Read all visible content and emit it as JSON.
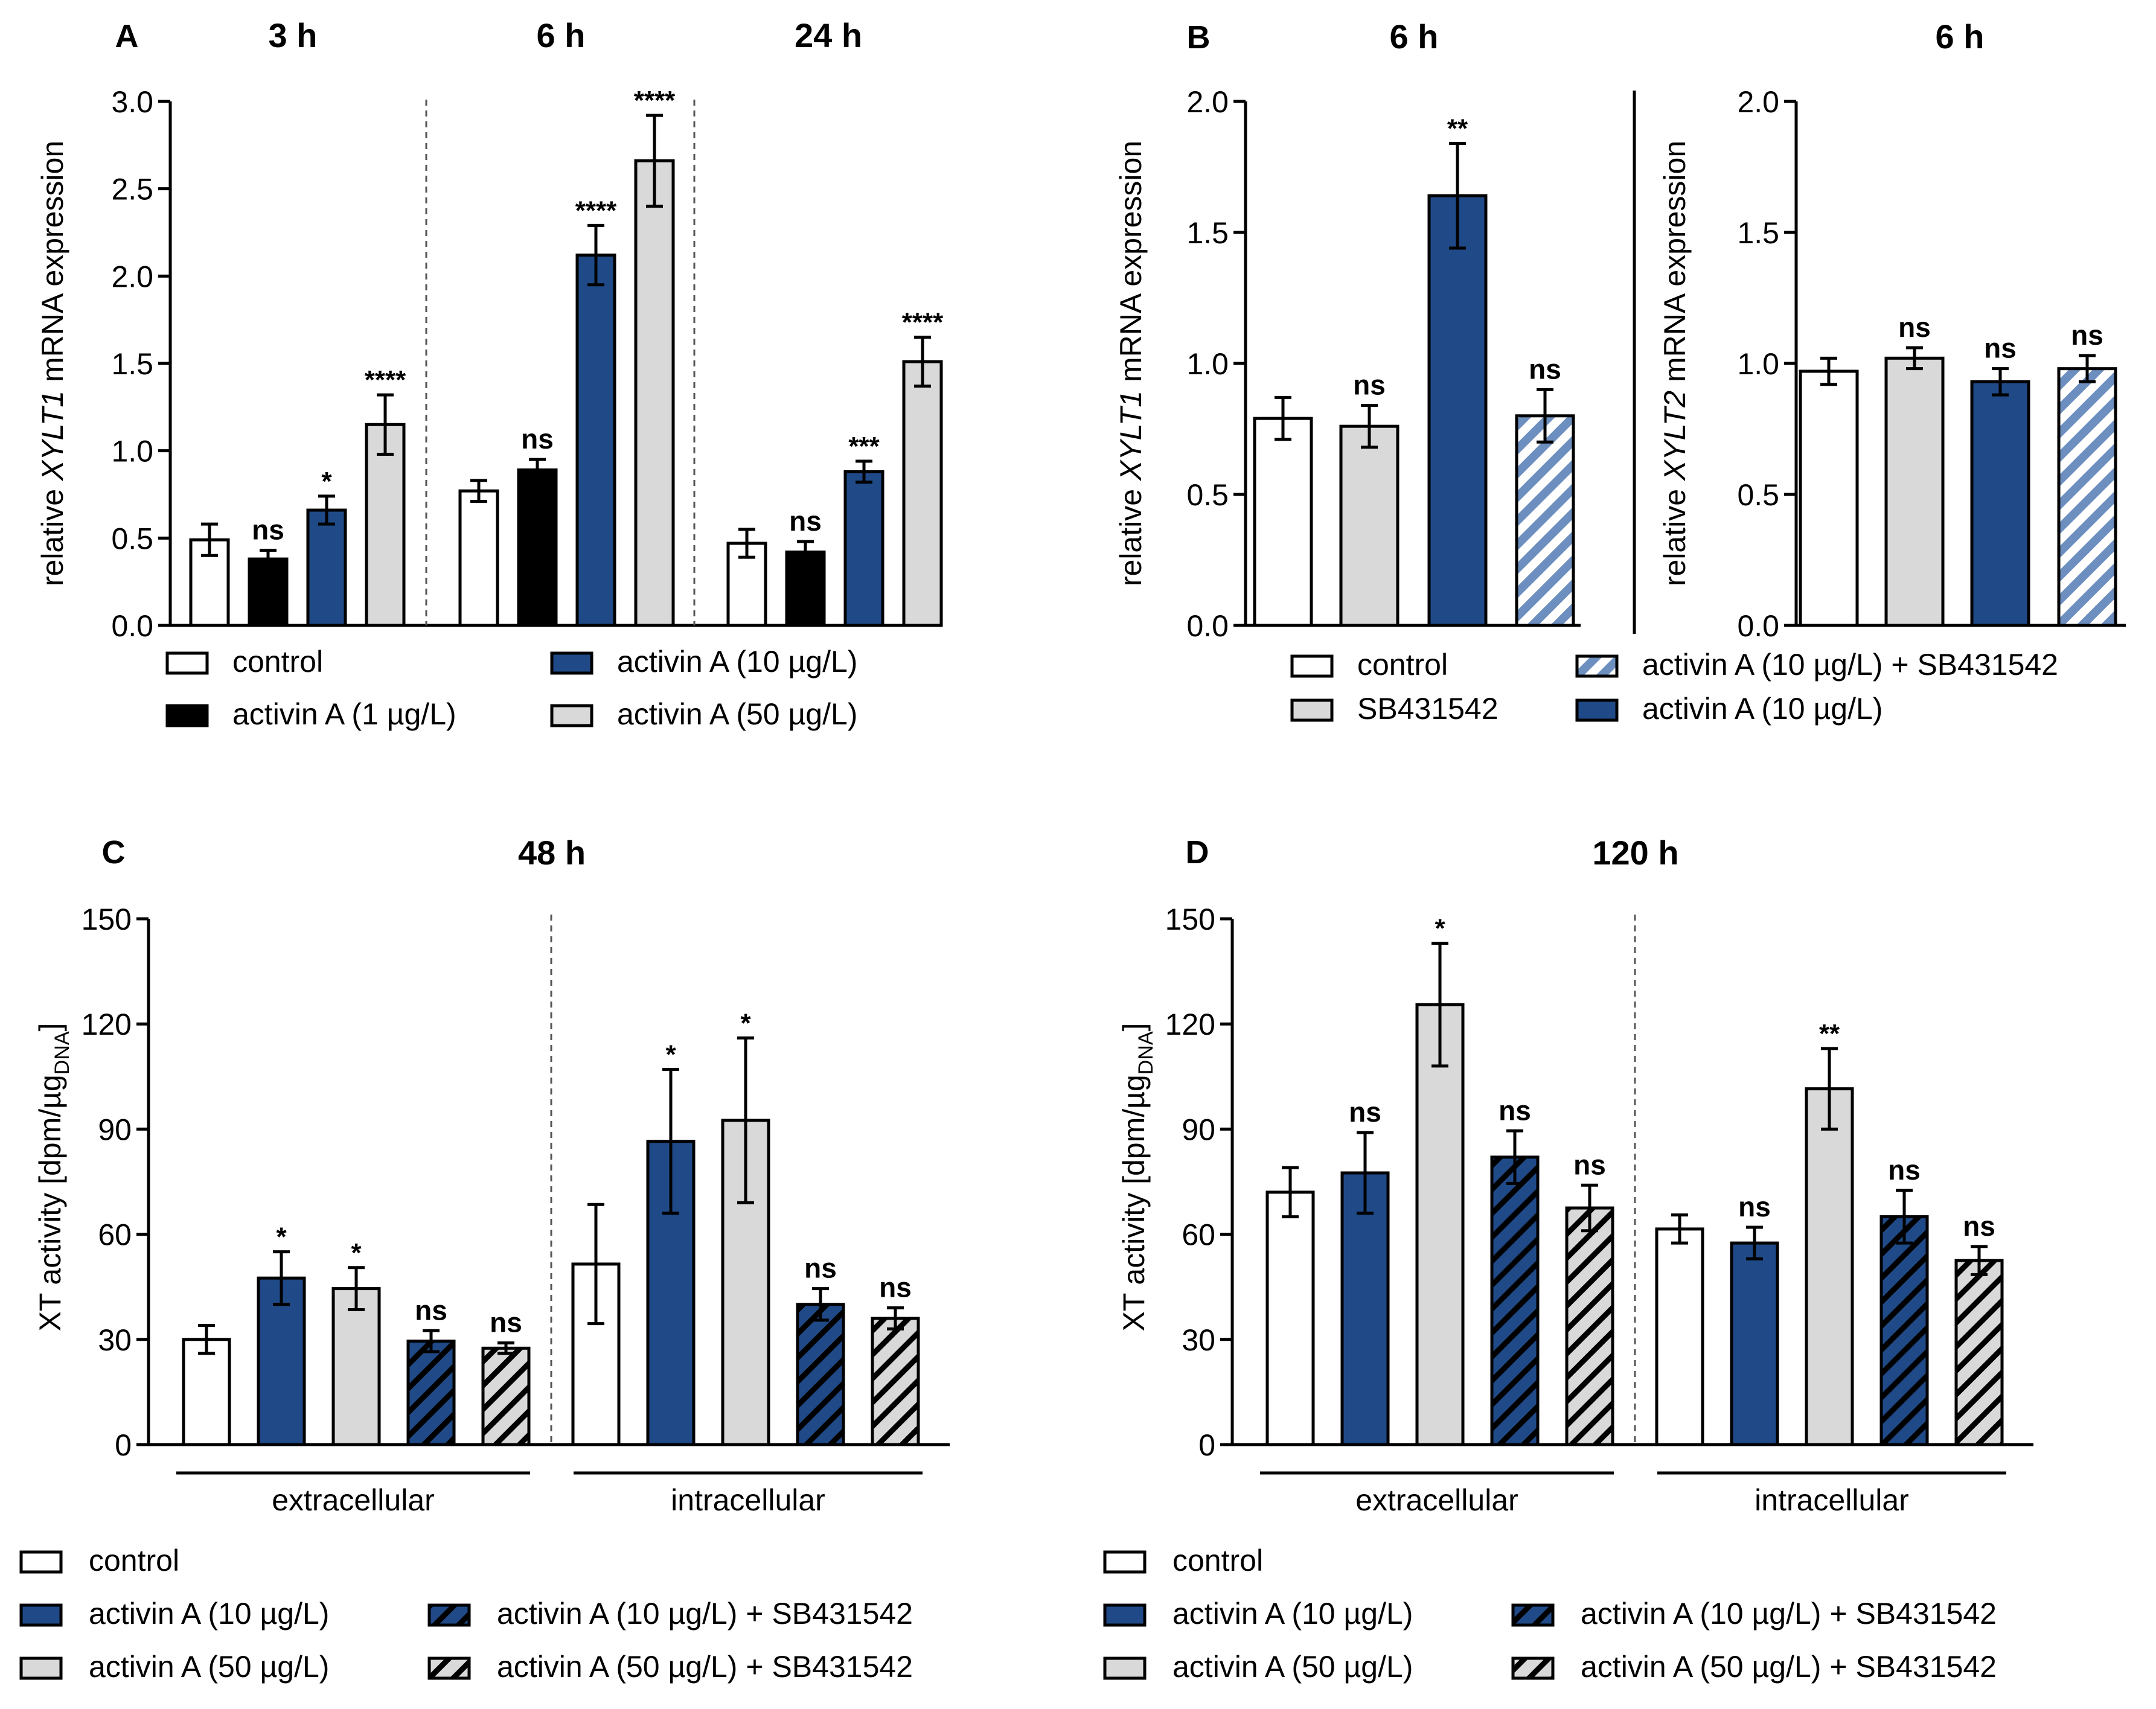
{
  "colors": {
    "white": "#ffffff",
    "black": "#000000",
    "navy": "#1f4a87",
    "gray": "#d9d9d9",
    "hatch_light_bg": "#a9bfdd",
    "dashed": "#555555"
  },
  "legends": {
    "A": [
      {
        "label": "control",
        "style": "white"
      },
      {
        "label": "activin A (1 µg/L)",
        "style": "black"
      },
      {
        "label": "activin A (10 µg/L)",
        "style": "navy"
      },
      {
        "label": "activin A (50 µg/L)",
        "style": "gray"
      }
    ],
    "B": [
      {
        "label": "control",
        "style": "white"
      },
      {
        "label": "SB431542",
        "style": "gray"
      },
      {
        "label": "activin A (10 µg/L) + SB431542",
        "style": "navyhatch_light"
      },
      {
        "label": "activin A (10 µg/L)",
        "style": "navy"
      }
    ],
    "CD": [
      {
        "label": "control",
        "style": "white"
      },
      {
        "label": "activin A (10 µg/L)",
        "style": "navy"
      },
      {
        "label": "activin A (50 µg/L)",
        "style": "gray"
      },
      {
        "label": "activin A (10 µg/L) + SB431542",
        "style": "navyhatch"
      },
      {
        "label": "activin A (50 µg/L) + SB431542",
        "style": "grayhatch"
      }
    ]
  },
  "chart_data": [
    {
      "panel": "A",
      "type": "bar",
      "title_segments": [
        "3 h",
        "6 h",
        "24 h"
      ],
      "ylabel_pre": "relative ",
      "ylabel_italic": "XYLT1",
      "ylabel_post": " mRNA expression",
      "ylim": [
        0,
        3.0
      ],
      "yticks": [
        "0.0",
        "0.5",
        "1.0",
        "1.5",
        "2.0",
        "2.5",
        "3.0"
      ],
      "groups": [
        {
          "name": "3 h",
          "bars": [
            {
              "series": "control",
              "style": "white",
              "value": 0.49,
              "err": 0.09,
              "sig": ""
            },
            {
              "series": "activin A (1 µg/L)",
              "style": "black",
              "value": 0.38,
              "err": 0.05,
              "sig": "ns"
            },
            {
              "series": "activin A (10 µg/L)",
              "style": "navy",
              "value": 0.66,
              "err": 0.08,
              "sig": "*"
            },
            {
              "series": "activin A (50 µg/L)",
              "style": "gray",
              "value": 1.15,
              "err": 0.17,
              "sig": "****"
            }
          ]
        },
        {
          "name": "6 h",
          "bars": [
            {
              "series": "control",
              "style": "white",
              "value": 0.77,
              "err": 0.06,
              "sig": ""
            },
            {
              "series": "activin A (1 µg/L)",
              "style": "black",
              "value": 0.89,
              "err": 0.06,
              "sig": "ns"
            },
            {
              "series": "activin A (10 µg/L)",
              "style": "navy",
              "value": 2.12,
              "err": 0.17,
              "sig": "****"
            },
            {
              "series": "activin A (50 µg/L)",
              "style": "gray",
              "value": 2.66,
              "err": 0.26,
              "sig": "****"
            }
          ]
        },
        {
          "name": "24 h",
          "bars": [
            {
              "series": "control",
              "style": "white",
              "value": 0.47,
              "err": 0.08,
              "sig": ""
            },
            {
              "series": "activin A (1 µg/L)",
              "style": "black",
              "value": 0.42,
              "err": 0.06,
              "sig": "ns"
            },
            {
              "series": "activin A (10 µg/L)",
              "style": "navy",
              "value": 0.88,
              "err": 0.06,
              "sig": "***"
            },
            {
              "series": "activin A (50 µg/L)",
              "style": "gray",
              "value": 1.51,
              "err": 0.14,
              "sig": "****"
            }
          ]
        }
      ]
    },
    {
      "panel": "B",
      "type": "bar",
      "subpanel": 1,
      "title": "6 h",
      "ylabel_pre": "relative ",
      "ylabel_italic": "XYLT1",
      "ylabel_post": " mRNA expression",
      "ylim": [
        0,
        2.0
      ],
      "yticks": [
        "0.0",
        "0.5",
        "1.0",
        "1.5",
        "2.0"
      ],
      "bars": [
        {
          "series": "control",
          "style": "white",
          "value": 0.79,
          "err": 0.08,
          "sig": ""
        },
        {
          "series": "SB431542",
          "style": "gray",
          "value": 0.76,
          "err": 0.08,
          "sig": "ns"
        },
        {
          "series": "activin A (10 µg/L)",
          "style": "navy",
          "value": 1.64,
          "err": 0.2,
          "sig": "**"
        },
        {
          "series": "activin A (10 µg/L) + SB431542",
          "style": "navyhatch_light",
          "value": 0.8,
          "err": 0.1,
          "sig": "ns"
        }
      ]
    },
    {
      "panel": "B",
      "type": "bar",
      "subpanel": 2,
      "title": "6 h",
      "ylabel_pre": "relative ",
      "ylabel_italic": "XYLT2",
      "ylabel_post": " mRNA expression",
      "ylim": [
        0,
        2.0
      ],
      "yticks": [
        "0.0",
        "0.5",
        "1.0",
        "1.5",
        "2.0"
      ],
      "bars": [
        {
          "series": "control",
          "style": "white",
          "value": 0.97,
          "err": 0.05,
          "sig": ""
        },
        {
          "series": "SB431542",
          "style": "gray",
          "value": 1.02,
          "err": 0.04,
          "sig": "ns"
        },
        {
          "series": "activin A (10 µg/L)",
          "style": "navy",
          "value": 0.93,
          "err": 0.05,
          "sig": "ns"
        },
        {
          "series": "activin A (10 µg/L) + SB431542",
          "style": "navyhatch_light",
          "value": 0.98,
          "err": 0.05,
          "sig": "ns"
        }
      ]
    },
    {
      "panel": "C",
      "type": "bar",
      "title": "48 h",
      "ylabel_main": "XT activity [dpm/µg",
      "ylabel_sub": "DNA",
      "ylabel_end": "]",
      "ylim": [
        0,
        150
      ],
      "yticks": [
        "0",
        "30",
        "60",
        "90",
        "120",
        "150"
      ],
      "groups": [
        {
          "name": "extracellular",
          "bars": [
            {
              "series": "control",
              "style": "white",
              "value": 30,
              "err": 4,
              "sig": ""
            },
            {
              "series": "activin A (10 µg/L)",
              "style": "navy",
              "value": 47.5,
              "err": 7.5,
              "sig": "*"
            },
            {
              "series": "activin A (50 µg/L)",
              "style": "gray",
              "value": 44.5,
              "err": 6,
              "sig": "*"
            },
            {
              "series": "activin A (10 µg/L) + SB431542",
              "style": "navyhatch",
              "value": 29.5,
              "err": 3,
              "sig": "ns"
            },
            {
              "series": "activin A (50 µg/L) + SB431542",
              "style": "grayhatch",
              "value": 27.5,
              "err": 1.5,
              "sig": "ns"
            }
          ]
        },
        {
          "name": "intracellular",
          "bars": [
            {
              "series": "control",
              "style": "white",
              "value": 51.5,
              "err": 17,
              "sig": ""
            },
            {
              "series": "activin A (10 µg/L)",
              "style": "navy",
              "value": 86.5,
              "err": 20.5,
              "sig": "*"
            },
            {
              "series": "activin A (50 µg/L)",
              "style": "gray",
              "value": 92.5,
              "err": 23.5,
              "sig": "*"
            },
            {
              "series": "activin A (10 µg/L) + SB431542",
              "style": "navyhatch",
              "value": 40,
              "err": 4.5,
              "sig": "ns"
            },
            {
              "series": "activin A (50 µg/L) + SB431542",
              "style": "grayhatch",
              "value": 36,
              "err": 3,
              "sig": "ns"
            }
          ]
        }
      ]
    },
    {
      "panel": "D",
      "type": "bar",
      "title": "120 h",
      "ylabel_main": "XT activity [dpm/µg",
      "ylabel_sub": "DNA",
      "ylabel_end": "]",
      "ylim": [
        0,
        150
      ],
      "yticks": [
        "0",
        "30",
        "60",
        "90",
        "120",
        "150"
      ],
      "groups": [
        {
          "name": "extracellular",
          "bars": [
            {
              "series": "control",
              "style": "white",
              "value": 72,
              "err": 7,
              "sig": ""
            },
            {
              "series": "activin A (10 µg/L)",
              "style": "navy",
              "value": 77.5,
              "err": 11.5,
              "sig": "ns"
            },
            {
              "series": "activin A (50 µg/L)",
              "style": "gray",
              "value": 125.5,
              "err": 17.5,
              "sig": "*"
            },
            {
              "series": "activin A (10 µg/L) + SB431542",
              "style": "navyhatch",
              "value": 82,
              "err": 7.5,
              "sig": "ns"
            },
            {
              "series": "activin A (50 µg/L) + SB431542",
              "style": "grayhatch",
              "value": 67.5,
              "err": 6.5,
              "sig": "ns"
            }
          ]
        },
        {
          "name": "intracellular",
          "bars": [
            {
              "series": "control",
              "style": "white",
              "value": 61.5,
              "err": 4,
              "sig": ""
            },
            {
              "series": "activin A (10 µg/L)",
              "style": "navy",
              "value": 57.5,
              "err": 4.5,
              "sig": "ns"
            },
            {
              "series": "activin A (50 µg/L)",
              "style": "gray",
              "value": 101.5,
              "err": 11.5,
              "sig": "**"
            },
            {
              "series": "activin A (10 µg/L) + SB431542",
              "style": "navyhatch",
              "value": 65,
              "err": 7.5,
              "sig": "ns"
            },
            {
              "series": "activin A (50 µg/L) + SB431542",
              "style": "grayhatch",
              "value": 52.5,
              "err": 4,
              "sig": "ns"
            }
          ]
        }
      ]
    }
  ]
}
